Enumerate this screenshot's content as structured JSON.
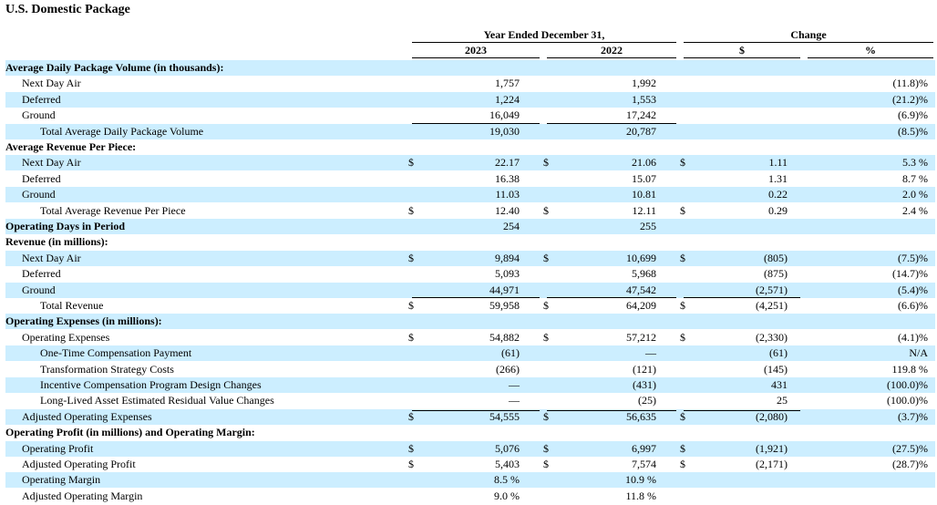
{
  "title": "U.S. Domestic Package",
  "header": {
    "year_group": "Year Ended December 31,",
    "change_group": "Change",
    "col_2023": "2023",
    "col_2022": "2022",
    "col_dollar": "$",
    "col_pct": "%"
  },
  "rows": [
    {
      "label": "Average Daily Package Volume (in thousands):",
      "style": "section"
    },
    {
      "label": "Next Day Air",
      "indent": 1,
      "v2023": "1,757",
      "v2022": "1,992",
      "pct": "(11.8)%"
    },
    {
      "label": "Deferred",
      "indent": 1,
      "v2023": "1,224",
      "v2022": "1,553",
      "pct": "(21.2)%"
    },
    {
      "label": "Ground",
      "indent": 1,
      "v2023": "16,049",
      "v2022": "17,242",
      "pct": "(6.9)%"
    },
    {
      "label": "Total Average Daily Package Volume",
      "indent": 2,
      "v2023": "19,030",
      "v2022": "20,787",
      "pct": "(8.5)%"
    },
    {
      "label": "Average Revenue Per Piece:",
      "style": "section"
    },
    {
      "label": "Next Day Air",
      "indent": 1,
      "d2023": "$",
      "v2023": "22.17",
      "d2022": "$",
      "v2022": "21.06",
      "dchg": "$",
      "chg": "1.11",
      "pct": "5.3 %"
    },
    {
      "label": "Deferred",
      "indent": 1,
      "v2023": "16.38",
      "v2022": "15.07",
      "chg": "1.31",
      "pct": "8.7 %"
    },
    {
      "label": "Ground",
      "indent": 1,
      "v2023": "11.03",
      "v2022": "10.81",
      "chg": "0.22",
      "pct": "2.0 %"
    },
    {
      "label": "Total Average Revenue Per Piece",
      "indent": 2,
      "d2023": "$",
      "v2023": "12.40",
      "d2022": "$",
      "v2022": "12.11",
      "dchg": "$",
      "chg": "0.29",
      "pct": "2.4 %"
    },
    {
      "label": "Operating Days in Period",
      "style": "section",
      "v2023": "254",
      "v2022": "255"
    },
    {
      "label": "Revenue (in millions):",
      "style": "section"
    },
    {
      "label": "Next Day Air",
      "indent": 1,
      "d2023": "$",
      "v2023": "9,894",
      "d2022": "$",
      "v2022": "10,699",
      "dchg": "$",
      "chg": "(805)",
      "pct": "(7.5)%"
    },
    {
      "label": "Deferred",
      "indent": 1,
      "v2023": "5,093",
      "v2022": "5,968",
      "chg": "(875)",
      "pct": "(14.7)%"
    },
    {
      "label": "Ground",
      "indent": 1,
      "v2023": "44,971",
      "v2022": "47,542",
      "chg": "(2,571)",
      "pct": "(5.4)%"
    },
    {
      "label": "Total Revenue",
      "indent": 2,
      "d2023": "$",
      "v2023": "59,958",
      "d2022": "$",
      "v2022": "64,209",
      "dchg": "$",
      "chg": "(4,251)",
      "pct": "(6.6)%"
    },
    {
      "label": "Operating Expenses (in millions):",
      "style": "section"
    },
    {
      "label": "Operating Expenses",
      "indent": 1,
      "d2023": "$",
      "v2023": "54,882",
      "d2022": "$",
      "v2022": "57,212",
      "dchg": "$",
      "chg": "(2,330)",
      "pct": "(4.1)%"
    },
    {
      "label": "One-Time Compensation Payment",
      "indent": 2,
      "v2023": "(61)",
      "v2022": "—",
      "chg": "(61)",
      "pct": "N/A"
    },
    {
      "label": "Transformation Strategy Costs",
      "indent": 2,
      "v2023": "(266)",
      "v2022": "(121)",
      "chg": "(145)",
      "pct": "119.8 %"
    },
    {
      "label": "Incentive Compensation Program Design Changes",
      "indent": 2,
      "v2023": "—",
      "v2022": "(431)",
      "chg": "431",
      "pct": "(100.0)%"
    },
    {
      "label": "Long-Lived Asset Estimated Residual Value Changes",
      "indent": 2,
      "v2023": "—",
      "v2022": "(25)",
      "chg": "25",
      "pct": "(100.0)%"
    },
    {
      "label": "Adjusted Operating Expenses",
      "indent": 1,
      "d2023": "$",
      "v2023": "54,555",
      "d2022": "$",
      "v2022": "56,635",
      "dchg": "$",
      "chg": "(2,080)",
      "pct": "(3.7)%"
    },
    {
      "label": "Operating Profit (in millions) and Operating Margin:",
      "style": "section"
    },
    {
      "label": "Operating Profit",
      "indent": 1,
      "d2023": "$",
      "v2023": "5,076",
      "d2022": "$",
      "v2022": "6,997",
      "dchg": "$",
      "chg": "(1,921)",
      "pct": "(27.5)%"
    },
    {
      "label": "Adjusted Operating Profit",
      "indent": 1,
      "d2023": "$",
      "v2023": "5,403",
      "d2022": "$",
      "v2022": "7,574",
      "dchg": "$",
      "chg": "(2,171)",
      "pct": "(28.7)%"
    },
    {
      "label": "Operating Margin",
      "indent": 1,
      "v2023": "8.5 %",
      "v2022": "10.9 %"
    },
    {
      "label": "Adjusted Operating Margin",
      "indent": 1,
      "v2023": "9.0 %",
      "v2022": "11.8 %"
    }
  ]
}
